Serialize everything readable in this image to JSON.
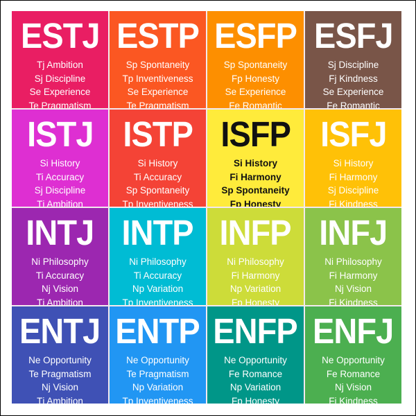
{
  "cells": [
    {
      "type": "ESTJ",
      "color": "#e91e63",
      "lines": [
        "Tj Ambition",
        "Sj Discipline",
        "Se Experience",
        "Te Pragmatism"
      ]
    },
    {
      "type": "ESTP",
      "color": "#fb5722",
      "lines": [
        "Sp Spontaneity",
        "Tp Inventiveness",
        "Se Experience",
        "Te Pragmatism"
      ]
    },
    {
      "type": "ESFP",
      "color": "#fd8f00",
      "lines": [
        "Sp Spontaneity",
        "Fp Honesty",
        "Se Experience",
        "Fe Romantic"
      ]
    },
    {
      "type": "ESFJ",
      "color": "#795548",
      "lines": [
        "Sj Discipline",
        "Fj Kindness",
        "Se Experience",
        "Fe Romantic"
      ]
    },
    {
      "type": "ISTJ",
      "color": "#de2fd2",
      "lines": [
        "Si History",
        "Ti Accuracy",
        "Sj Discipline",
        "Tj Ambition"
      ]
    },
    {
      "type": "ISTP",
      "color": "#f44336",
      "lines": [
        "Si History",
        "Ti Accuracy",
        "Sp Spontaneity",
        "Tp Inventiveness"
      ]
    },
    {
      "type": "ISFP",
      "color": "#ffeb3b",
      "text": "dark",
      "lines": [
        "Si History",
        "Fi Harmony",
        "Sp Spontaneity",
        "Fp Honesty"
      ]
    },
    {
      "type": "ISFJ",
      "color": "#ffc107",
      "lines": [
        "Si History",
        "Fi Harmony",
        "Sj Discipline",
        "Fj Kindness"
      ]
    },
    {
      "type": "INTJ",
      "color": "#9c27b0",
      "lines": [
        "Ni Philosophy",
        "Ti Accuracy",
        "Nj Vision",
        "Tj Ambition"
      ]
    },
    {
      "type": "INTP",
      "color": "#00bcd4",
      "lines": [
        "Ni Philosophy",
        "Ti Accuracy",
        "Np Variation",
        "Tp Inventiveness"
      ]
    },
    {
      "type": "INFP",
      "color": "#cddc39",
      "lines": [
        "Ni Philosophy",
        "Fi Harmony",
        "Np Variation",
        "Fp Honesty"
      ]
    },
    {
      "type": "INFJ",
      "color": "#8bc34a",
      "lines": [
        "Ni Philosophy",
        "Fi Harmony",
        "Nj Vision",
        "Fj Kindness"
      ]
    },
    {
      "type": "ENTJ",
      "color": "#3f51b5",
      "lines": [
        "Ne Opportunity",
        "Te Pragmatism",
        "Nj Vision",
        "Tj Ambition"
      ]
    },
    {
      "type": "ENTP",
      "color": "#2196f3",
      "lines": [
        "Ne Opportunity",
        "Te Pragmatism",
        "Np Variation",
        "Tp Inventiveness"
      ]
    },
    {
      "type": "ENFP",
      "color": "#009688",
      "lines": [
        "Ne Opportunity",
        "Fe Romance",
        "Np Variation",
        "Fp Honesty"
      ]
    },
    {
      "type": "ENFJ",
      "color": "#4caf50",
      "lines": [
        "Ne Opportunity",
        "Fe Romance",
        "Nj Vision",
        "Fj Kindness"
      ]
    }
  ]
}
